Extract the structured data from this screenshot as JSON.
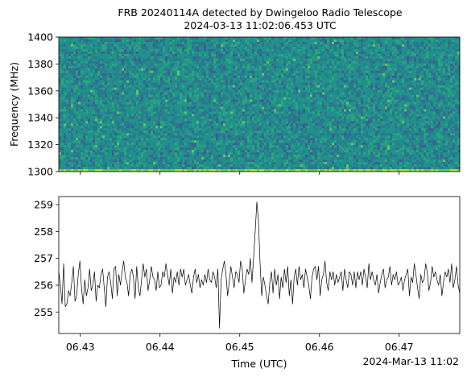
{
  "chart_data": [
    {
      "type": "heatmap",
      "title_line1": "FRB 20240114A detected by Dwingeloo Radio Telescope",
      "title_line2": "2024-03-13 11:02:06.453 UTC",
      "ylabel": "Frequency (MHz)",
      "ylim": [
        1300,
        1400
      ],
      "yticks": [
        "1300",
        "1320",
        "1340",
        "1360",
        "1380",
        "1400"
      ],
      "colormap": [
        "#3a5f92",
        "#2b788e",
        "#21918c",
        "#2aa67e",
        "#5ec962",
        "#b5de2b"
      ],
      "shares_x_axis_with_panel_below": true
    },
    {
      "type": "line",
      "xlabel": "Time (UTC)",
      "x_offset_label": "2024-Mar-13 11:02",
      "xlim_seconds": [
        6.4273,
        6.4776
      ],
      "xticks": [
        "06.43",
        "06.44",
        "06.45",
        "06.46",
        "06.47"
      ],
      "xtick_values_seconds": [
        6.43,
        6.44,
        6.45,
        6.46,
        6.47
      ],
      "ylim": [
        254.2,
        259.3
      ],
      "yticks": [
        "255",
        "256",
        "257",
        "258",
        "259"
      ],
      "line_color": "#000000",
      "series": [
        {
          "x_start_seconds": 6.4273,
          "x_end_seconds": 6.4776,
          "values": [
            256.5,
            256.0,
            255.3,
            256.8,
            255.2,
            255.3,
            255.8,
            255.6,
            256.1,
            256.7,
            255.4,
            255.6,
            256.4,
            256.9,
            255.9,
            255.3,
            256.2,
            255.6,
            255.9,
            256.6,
            255.8,
            256.0,
            256.5,
            255.4,
            256.0,
            255.9,
            256.4,
            256.6,
            255.9,
            255.2,
            256.3,
            256.5,
            256.1,
            255.5,
            256.6,
            256.7,
            255.6,
            256.4,
            256.0,
            256.5,
            256.9,
            256.3,
            256.1,
            255.6,
            256.4,
            256.6,
            256.3,
            255.5,
            256.7,
            255.9,
            255.6,
            256.2,
            256.8,
            256.3,
            256.6,
            255.8,
            256.2,
            256.7,
            256.3,
            256.2,
            255.8,
            256.5,
            255.9,
            256.0,
            256.5,
            256.3,
            256.8,
            256.4,
            256.0,
            256.6,
            255.7,
            256.3,
            256.1,
            256.5,
            256.0,
            256.6,
            256.3,
            256.6,
            256.0,
            256.2,
            256.4,
            256.0,
            255.7,
            256.3,
            256.6,
            256.1,
            256.4,
            255.9,
            256.2,
            256.0,
            256.4,
            256.1,
            256.6,
            256.2,
            256.1,
            256.5,
            256.3,
            255.9,
            256.6,
            254.4,
            256.2,
            256.6,
            256.9,
            256.4,
            255.6,
            256.1,
            256.7,
            256.3,
            255.9,
            256.5,
            256.4,
            256.1,
            256.9,
            256.6,
            255.7,
            256.2,
            256.6,
            256.4,
            257.0,
            256.1,
            257.0,
            258.0,
            259.1,
            258.4,
            256.8,
            255.6,
            256.3,
            256.0,
            255.6,
            255.3,
            256.1,
            256.5,
            255.7,
            256.6,
            256.0,
            256.4,
            255.5,
            256.3,
            255.9,
            256.6,
            256.1,
            256.7,
            255.6,
            256.2,
            255.3,
            256.3,
            256.6,
            256.0,
            256.7,
            256.2,
            256.4,
            255.9,
            256.6,
            256.3,
            256.0,
            255.5,
            256.3,
            256.6,
            256.7,
            256.2,
            256.7,
            255.6,
            256.2,
            256.4,
            256.9,
            256.1,
            255.8,
            256.5,
            256.2,
            256.5,
            256.0,
            256.4,
            256.1,
            256.3,
            256.5,
            255.8,
            256.6,
            256.2,
            255.9,
            256.5,
            256.4,
            256.0,
            256.5,
            255.9,
            256.5,
            256.2,
            256.5,
            256.0,
            256.6,
            256.3,
            255.9,
            256.8,
            256.2,
            256.5,
            256.2,
            256.0,
            256.4,
            255.7,
            256.1,
            256.4,
            256.6,
            255.9,
            256.2,
            256.3,
            256.7,
            256.0,
            256.4,
            256.2,
            256.5,
            256.0,
            256.1,
            256.3,
            255.8,
            256.2,
            256.4,
            256.6,
            255.6,
            256.3,
            256.1,
            256.8,
            256.4,
            255.9,
            255.5,
            256.4,
            256.1,
            256.2,
            256.8,
            256.5,
            255.8,
            256.1,
            256.7,
            256.3,
            256.5,
            256.2,
            256.0,
            256.4,
            255.6,
            256.1,
            256.5,
            256.3,
            256.6,
            256.1,
            256.8,
            255.9,
            256.2,
            256.7,
            256.0,
            255.7
          ]
        }
      ]
    }
  ]
}
